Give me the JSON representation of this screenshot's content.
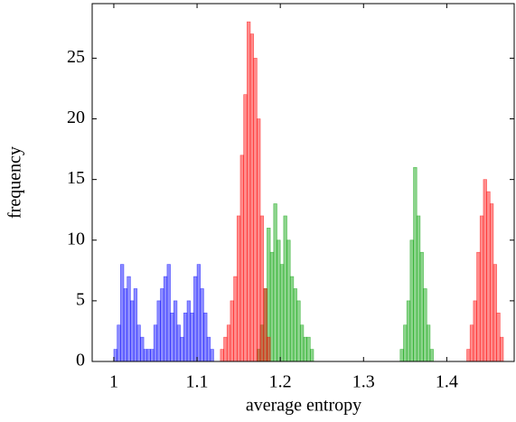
{
  "chart_data": {
    "type": "histogram",
    "x_label": "average entropy",
    "y_label": "frequency",
    "xlim": [
      0.974,
      1.481
    ],
    "ylim": [
      0,
      29.5
    ],
    "xticks": [
      1,
      1.1,
      1.2,
      1.3,
      1.4
    ],
    "yticks": [
      0,
      5,
      10,
      15,
      20,
      25
    ],
    "series": [
      {
        "color": "#0000ff",
        "bins": [
          1.0,
          1.004,
          1.008,
          1.012,
          1.016,
          1.02,
          1.024,
          1.028,
          1.032,
          1.036,
          1.04,
          1.044,
          1.048,
          1.052,
          1.056,
          1.06,
          1.064,
          1.068,
          1.072,
          1.076,
          1.08,
          1.084,
          1.088,
          1.092,
          1.096,
          1.1,
          1.104,
          1.108,
          1.112,
          1.116,
          1.12
        ],
        "values": [
          1,
          3,
          8,
          6,
          7,
          5,
          6,
          3,
          2,
          1,
          1,
          1,
          3,
          5,
          6,
          7,
          8,
          4,
          5,
          3,
          2,
          4,
          5,
          4,
          7,
          8,
          6,
          4,
          2,
          1
        ]
      },
      {
        "color": "#00a000",
        "bins": [
          1.172,
          1.176,
          1.18,
          1.184,
          1.188,
          1.192,
          1.196,
          1.2,
          1.204,
          1.208,
          1.212,
          1.216,
          1.22,
          1.224,
          1.228,
          1.232,
          1.236,
          1.24
        ],
        "values": [
          1,
          3,
          6,
          11,
          9,
          13,
          10,
          8,
          12,
          10,
          7,
          6,
          5,
          3,
          2,
          2,
          1
        ]
      },
      {
        "color": "#00a000",
        "bins": [
          1.344,
          1.348,
          1.352,
          1.356,
          1.36,
          1.364,
          1.368,
          1.372,
          1.376,
          1.38,
          1.384
        ],
        "values": [
          1,
          3,
          5,
          10,
          16,
          12,
          9,
          6,
          3,
          1
        ]
      },
      {
        "color": "#ff0000",
        "bins": [
          1.128,
          1.132,
          1.136,
          1.14,
          1.144,
          1.148,
          1.152,
          1.156,
          1.16,
          1.164,
          1.168,
          1.172,
          1.176,
          1.18,
          1.184,
          1.188
        ],
        "values": [
          1,
          2,
          3,
          5,
          7,
          12,
          17,
          22,
          28,
          27,
          25,
          20,
          12,
          6,
          2
        ]
      },
      {
        "color": "#ff0000",
        "bins": [
          1.424,
          1.428,
          1.432,
          1.436,
          1.44,
          1.444,
          1.448,
          1.452,
          1.456,
          1.46,
          1.464,
          1.468
        ],
        "values": [
          1,
          3,
          5,
          9,
          12,
          15,
          14,
          13,
          8,
          4,
          2
        ]
      }
    ]
  }
}
